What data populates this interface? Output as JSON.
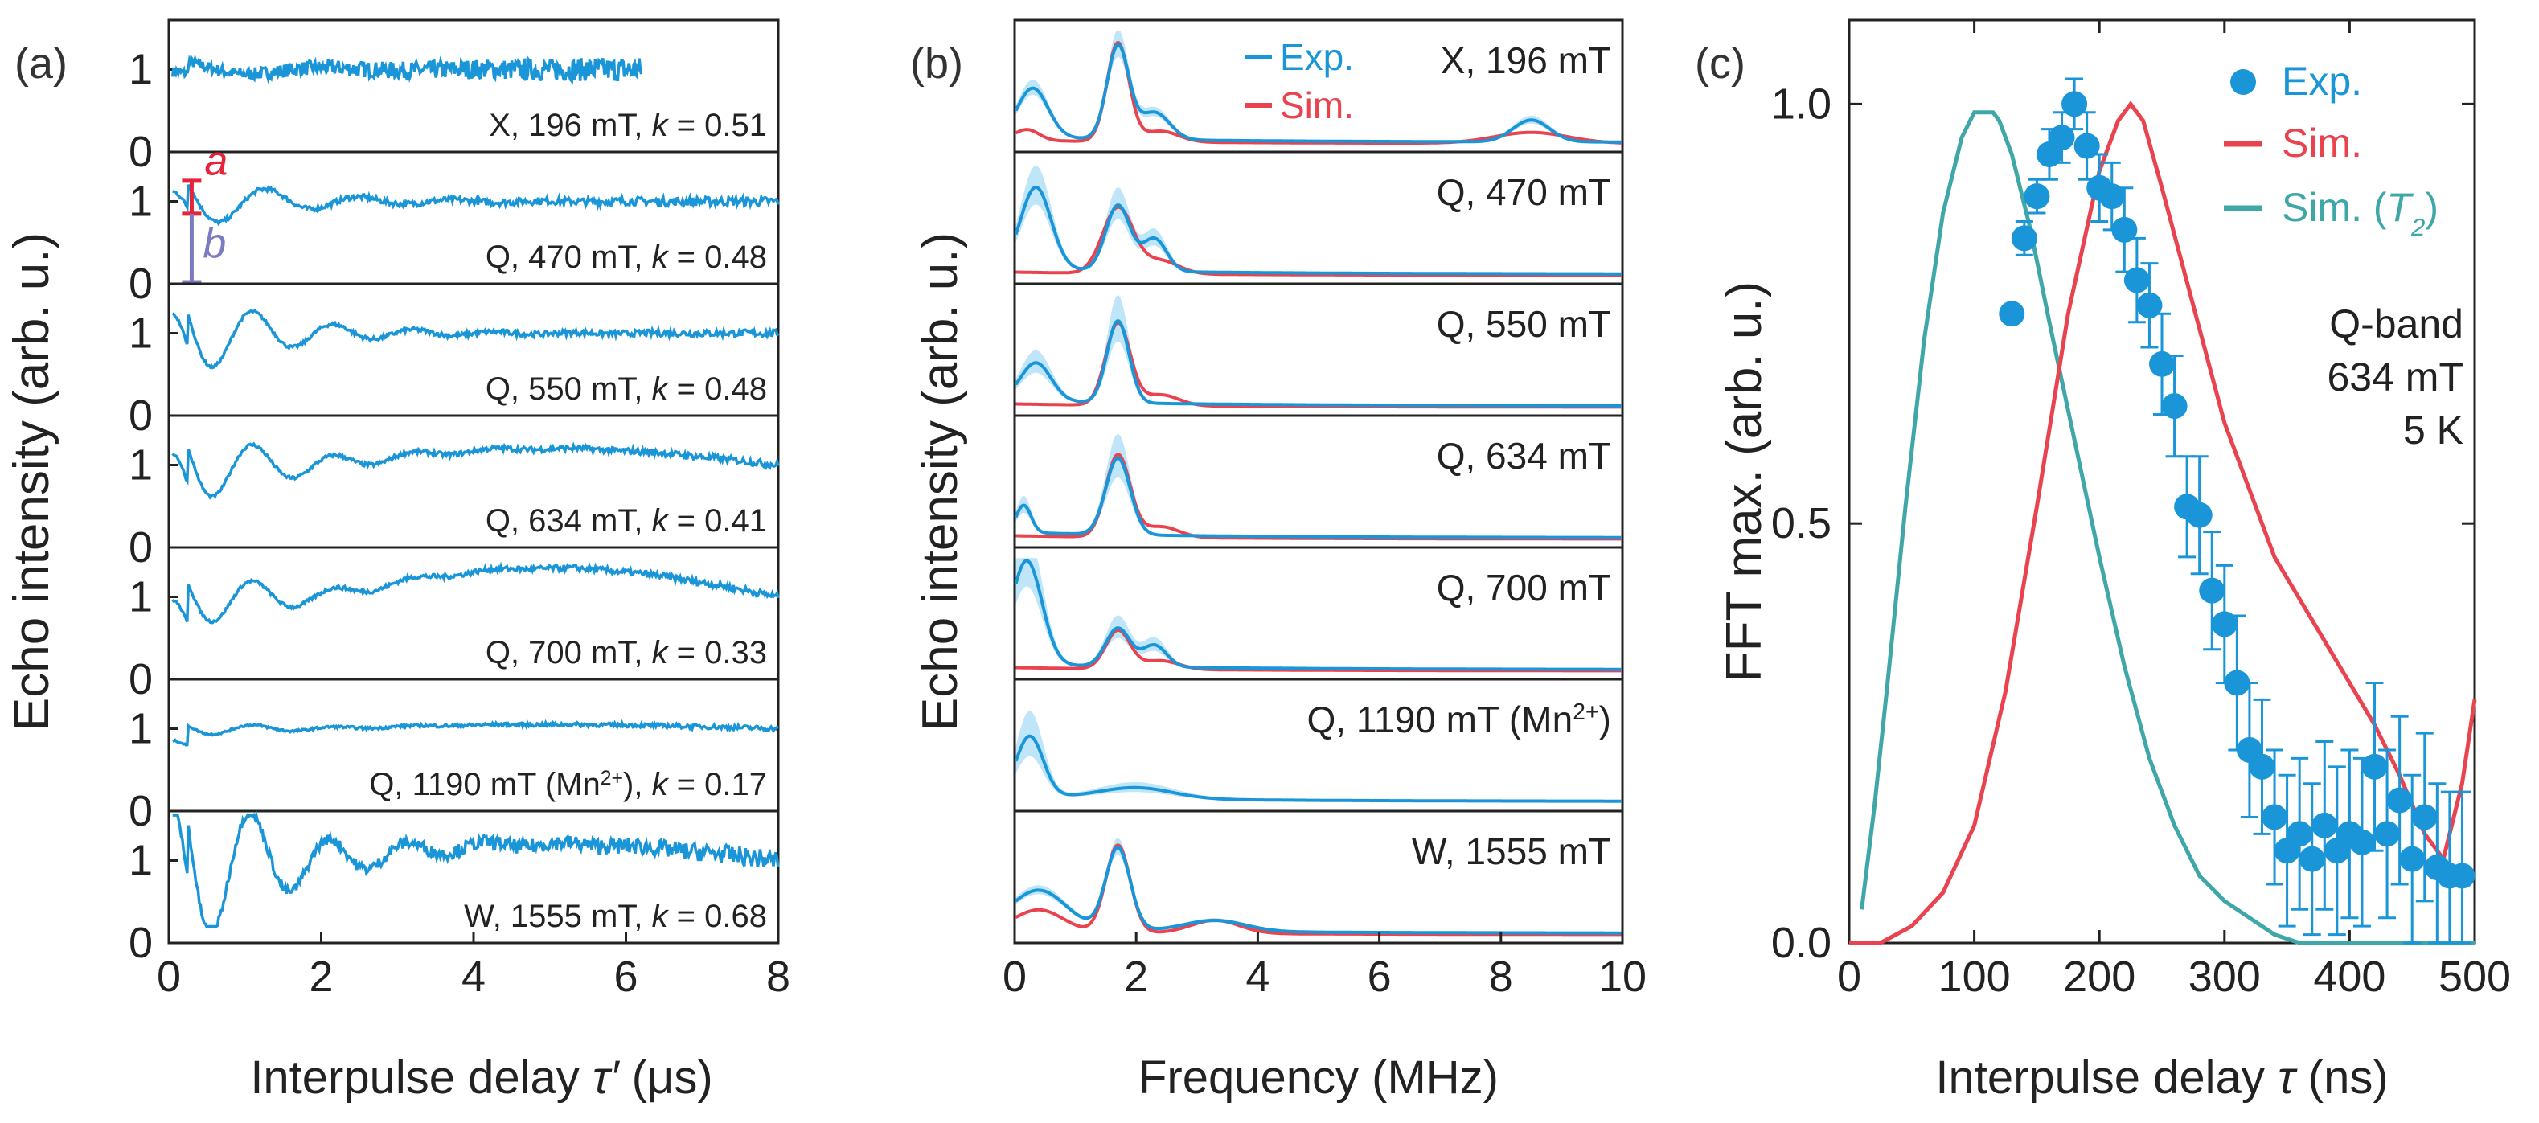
{
  "chart_data": [
    {
      "type": "line",
      "panel_label": "(a)",
      "xlabel_text": "Interpulse delay ",
      "xlabel_symbol": "τ′",
      "xlabel_unit": " (μs)",
      "ylabel": "Echo intensity (arb. u.)",
      "xlim": [
        0,
        8
      ],
      "xticks": [
        "0",
        "2",
        "4",
        "6",
        "8"
      ],
      "ylim_per_subplot": [
        0,
        1.6
      ],
      "ytick_labels": [
        "0",
        "1"
      ],
      "series_color": "#1a96d8",
      "subplots": [
        {
          "label_parts": [
            "X, 196 mT, ",
            "k",
            " = 0.51"
          ],
          "t_max": 6.2,
          "fast": 8,
          "amp": 0.06,
          "slow_amp": 0,
          "noise": 0.12,
          "y_end": 1.05,
          "early": 0.15
        },
        {
          "label_parts": [
            "Q, 470 mT, ",
            "k",
            " = 0.48"
          ],
          "t_max": 8,
          "fast": 2.2,
          "amp": 0.2,
          "slow_amp": 0,
          "noise": 0.04,
          "y_end": 1.0,
          "early": 0.3,
          "annotations": [
            {
              "text": "a",
              "color": "#e5243b"
            },
            {
              "text": "b",
              "color": "#7b7bc2"
            }
          ]
        },
        {
          "label_parts": [
            "Q, 550 mT, ",
            "k",
            " = 0.48"
          ],
          "t_max": 8,
          "fast": 1.9,
          "amp": 0.3,
          "slow_amp": 0,
          "noise": 0.03,
          "y_end": 1.05,
          "early": 0.4
        },
        {
          "label_parts": [
            "Q, 634 mT, ",
            "k",
            " = 0.41"
          ],
          "t_max": 8,
          "fast": 1.9,
          "amp": 0.28,
          "slow_amp": 0.2,
          "noise": 0.03,
          "y_end": 1.15,
          "early": 0.45
        },
        {
          "label_parts": [
            "Q, 700 mT, ",
            "k",
            " = 0.33"
          ],
          "t_max": 8,
          "fast": 1.9,
          "amp": 0.22,
          "slow_amp": 0.35,
          "noise": 0.03,
          "y_end": 1.35,
          "early": 0.5
        },
        {
          "label_parts": [
            "Q, 1190 mT (Mn",
            "2+",
            "), ",
            "k",
            " = 0.17"
          ],
          "t_max": 8,
          "fast": 1.9,
          "amp": 0.05,
          "slow_amp": 0.05,
          "noise": 0.02,
          "y_end": 1.0,
          "early": 0.25
        },
        {
          "label_parts": [
            "W, 1555 mT, ",
            "k",
            " = 0.68"
          ],
          "t_max": 8,
          "fast": 1.85,
          "amp": 0.65,
          "slow_amp": 0.2,
          "noise": 0.08,
          "y_end": 1.2,
          "early": 0.7
        }
      ]
    },
    {
      "type": "line",
      "panel_label": "(b)",
      "xlabel": "Frequency (MHz)",
      "ylabel": "Echo intensity (arb. u.)",
      "xlim": [
        0,
        10
      ],
      "xticks": [
        "0",
        "2",
        "4",
        "6",
        "8",
        "10"
      ],
      "legend": [
        {
          "name": "Exp.",
          "color": "#1a96d8"
        },
        {
          "name": "Sim.",
          "color": "#e8434f"
        }
      ],
      "band_color": "#a9dcf5",
      "subplots": [
        {
          "label": "X, 196 mT",
          "exp_peaks": [
            [
              0.3,
              0.45,
              0.25
            ],
            [
              1.7,
              0.85,
              0.18
            ],
            [
              2.3,
              0.25,
              0.25
            ],
            [
              8.5,
              0.2,
              0.3
            ]
          ],
          "sim_peaks": [
            [
              0.2,
              0.1,
              0.2
            ],
            [
              1.7,
              0.9,
              0.18
            ],
            [
              2.4,
              0.1,
              0.3
            ],
            [
              8.5,
              0.1,
              0.6
            ]
          ],
          "band": 0.15
        },
        {
          "label": "Q, 470 mT",
          "exp_peaks": [
            [
              0.35,
              0.75,
              0.25
            ],
            [
              1.7,
              0.6,
              0.2
            ],
            [
              2.3,
              0.3,
              0.2
            ]
          ],
          "sim_peaks": [
            [
              1.7,
              0.6,
              0.25
            ],
            [
              2.4,
              0.12,
              0.3
            ]
          ],
          "band": 0.25
        },
        {
          "label": "Q, 550 mT",
          "exp_peaks": [
            [
              0.35,
              0.35,
              0.25
            ],
            [
              1.7,
              0.75,
              0.18
            ]
          ],
          "sim_peaks": [
            [
              1.7,
              0.75,
              0.2
            ],
            [
              2.4,
              0.1,
              0.3
            ]
          ],
          "band": 0.3
        },
        {
          "label": "Q, 634 mT",
          "exp_peaks": [
            [
              0.15,
              0.25,
              0.12
            ],
            [
              1.7,
              0.7,
              0.2
            ]
          ],
          "sim_peaks": [
            [
              1.7,
              0.75,
              0.2
            ],
            [
              2.4,
              0.1,
              0.3
            ]
          ],
          "band": 0.3
        },
        {
          "label": "Q, 700 mT",
          "exp_peaks": [
            [
              0.2,
              0.95,
              0.25
            ],
            [
              1.7,
              0.35,
              0.2
            ],
            [
              2.3,
              0.2,
              0.2
            ]
          ],
          "sim_peaks": [
            [
              1.7,
              0.35,
              0.2
            ],
            [
              2.4,
              0.08,
              0.3
            ]
          ],
          "band": 0.3
        },
        {
          "label_parts": [
            "Q, 1190 mT (Mn",
            "2+",
            ")"
          ],
          "exp_peaks": [
            [
              0.25,
              0.55,
              0.22
            ],
            [
              2.0,
              0.1,
              0.6
            ]
          ],
          "sim_peaks": [],
          "band": 0.4
        },
        {
          "label": "W, 1555 mT",
          "exp_peaks": [
            [
              0.4,
              0.35,
              0.45
            ],
            [
              1.7,
              0.75,
              0.2
            ],
            [
              3.3,
              0.1,
              0.5
            ]
          ],
          "sim_peaks": [
            [
              0.4,
              0.2,
              0.4
            ],
            [
              1.7,
              0.8,
              0.2
            ],
            [
              3.3,
              0.12,
              0.4
            ]
          ],
          "band": 0.1
        }
      ]
    },
    {
      "type": "scatter",
      "panel_label": "(c)",
      "xlabel_text": "Interpulse delay ",
      "xlabel_symbol": "τ",
      "xlabel_unit": " (ns)",
      "ylabel": "FFT max. (arb. u.)",
      "xlim": [
        0,
        500
      ],
      "ylim": [
        0,
        1.1
      ],
      "xticks": [
        "0",
        "100",
        "200",
        "300",
        "400",
        "500"
      ],
      "yticks": [
        "0.0",
        "0.5",
        "1.0"
      ],
      "legend": [
        {
          "name": "Exp.",
          "color": "#1a96d8"
        },
        {
          "name": "Sim.",
          "color": "#e8434f"
        },
        {
          "name_parts": [
            "Sim. (",
            "T",
            "2",
            ")"
          ],
          "color": "#3fa7a7"
        }
      ],
      "annotation_lines": [
        "Q-band",
        "634 mT",
        "5 K"
      ],
      "exp": {
        "x": [
          130,
          140,
          150,
          160,
          170,
          180,
          190,
          200,
          210,
          220,
          230,
          240,
          250,
          260,
          270,
          280,
          290,
          300,
          310,
          320,
          330,
          340,
          350,
          360,
          370,
          380,
          390,
          400,
          410,
          420,
          430,
          440,
          450,
          460,
          470,
          480,
          490
        ],
        "y": [
          0.75,
          0.84,
          0.89,
          0.94,
          0.96,
          1.0,
          0.95,
          0.9,
          0.89,
          0.85,
          0.79,
          0.76,
          0.69,
          0.64,
          0.52,
          0.51,
          0.42,
          0.38,
          0.31,
          0.23,
          0.21,
          0.15,
          0.11,
          0.13,
          0.1,
          0.14,
          0.11,
          0.13,
          0.12,
          0.21,
          0.13,
          0.17,
          0.1,
          0.15,
          0.09,
          0.08,
          0.08
        ],
        "err": [
          0.01,
          0.02,
          0.02,
          0.03,
          0.03,
          0.03,
          0.04,
          0.04,
          0.04,
          0.05,
          0.05,
          0.05,
          0.06,
          0.06,
          0.06,
          0.07,
          0.07,
          0.07,
          0.08,
          0.08,
          0.08,
          0.08,
          0.09,
          0.09,
          0.09,
          0.1,
          0.1,
          0.1,
          0.1,
          0.1,
          0.1,
          0.1,
          0.1,
          0.1,
          0.1,
          0.1,
          0.1
        ]
      },
      "sim": {
        "x": [
          0,
          25,
          50,
          75,
          100,
          125,
          150,
          175,
          200,
          215,
          225,
          235,
          250,
          275,
          300,
          325,
          340,
          360,
          380,
          400,
          420,
          440,
          460,
          475,
          490,
          500
        ],
        "y": [
          0.0,
          0.0,
          0.02,
          0.06,
          0.14,
          0.3,
          0.52,
          0.75,
          0.92,
          0.98,
          1.0,
          0.98,
          0.9,
          0.76,
          0.62,
          0.52,
          0.46,
          0.41,
          0.36,
          0.31,
          0.26,
          0.2,
          0.13,
          0.1,
          0.19,
          0.29
        ]
      },
      "sim_t2": {
        "x": [
          10,
          20,
          30,
          45,
          60,
          75,
          90,
          100,
          110,
          115,
          120,
          130,
          145,
          160,
          180,
          200,
          220,
          240,
          260,
          280,
          300,
          320,
          340,
          360,
          380,
          400,
          450,
          500
        ],
        "y": [
          0.04,
          0.16,
          0.3,
          0.52,
          0.72,
          0.87,
          0.96,
          0.99,
          0.99,
          0.99,
          0.98,
          0.94,
          0.85,
          0.74,
          0.6,
          0.46,
          0.33,
          0.22,
          0.14,
          0.08,
          0.05,
          0.03,
          0.01,
          0.0,
          0.0,
          0.0,
          0.0,
          0.0
        ]
      }
    }
  ]
}
